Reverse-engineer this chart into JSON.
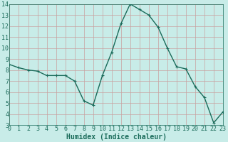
{
  "title": "",
  "xlabel": "Humidex (Indice chaleur)",
  "ylabel": "",
  "x_values": [
    0,
    1,
    2,
    3,
    4,
    5,
    6,
    7,
    8,
    9,
    10,
    11,
    12,
    13,
    14,
    15,
    16,
    17,
    18,
    19,
    20,
    21,
    22,
    23
  ],
  "y_values": [
    8.5,
    8.2,
    8.0,
    7.9,
    7.5,
    7.5,
    7.5,
    7.0,
    5.2,
    4.8,
    7.5,
    9.6,
    12.2,
    14.0,
    13.5,
    13.0,
    11.9,
    10.0,
    8.3,
    8.1,
    6.5,
    5.5,
    3.2,
    4.2
  ],
  "line_color": "#1a6b5a",
  "marker": "+",
  "marker_size": 3,
  "bg_color": "#c8ece8",
  "grid_color": "#c8a0a0",
  "ylim": [
    3,
    14
  ],
  "xlim": [
    0,
    23
  ],
  "yticks": [
    3,
    4,
    5,
    6,
    7,
    8,
    9,
    10,
    11,
    12,
    13,
    14
  ],
  "xticks": [
    0,
    1,
    2,
    3,
    4,
    5,
    6,
    7,
    8,
    9,
    10,
    11,
    12,
    13,
    14,
    15,
    16,
    17,
    18,
    19,
    20,
    21,
    22,
    23
  ],
  "font_color": "#1a6b5a",
  "xlabel_fontsize": 7,
  "tick_fontsize": 6,
  "linewidth": 1.0
}
